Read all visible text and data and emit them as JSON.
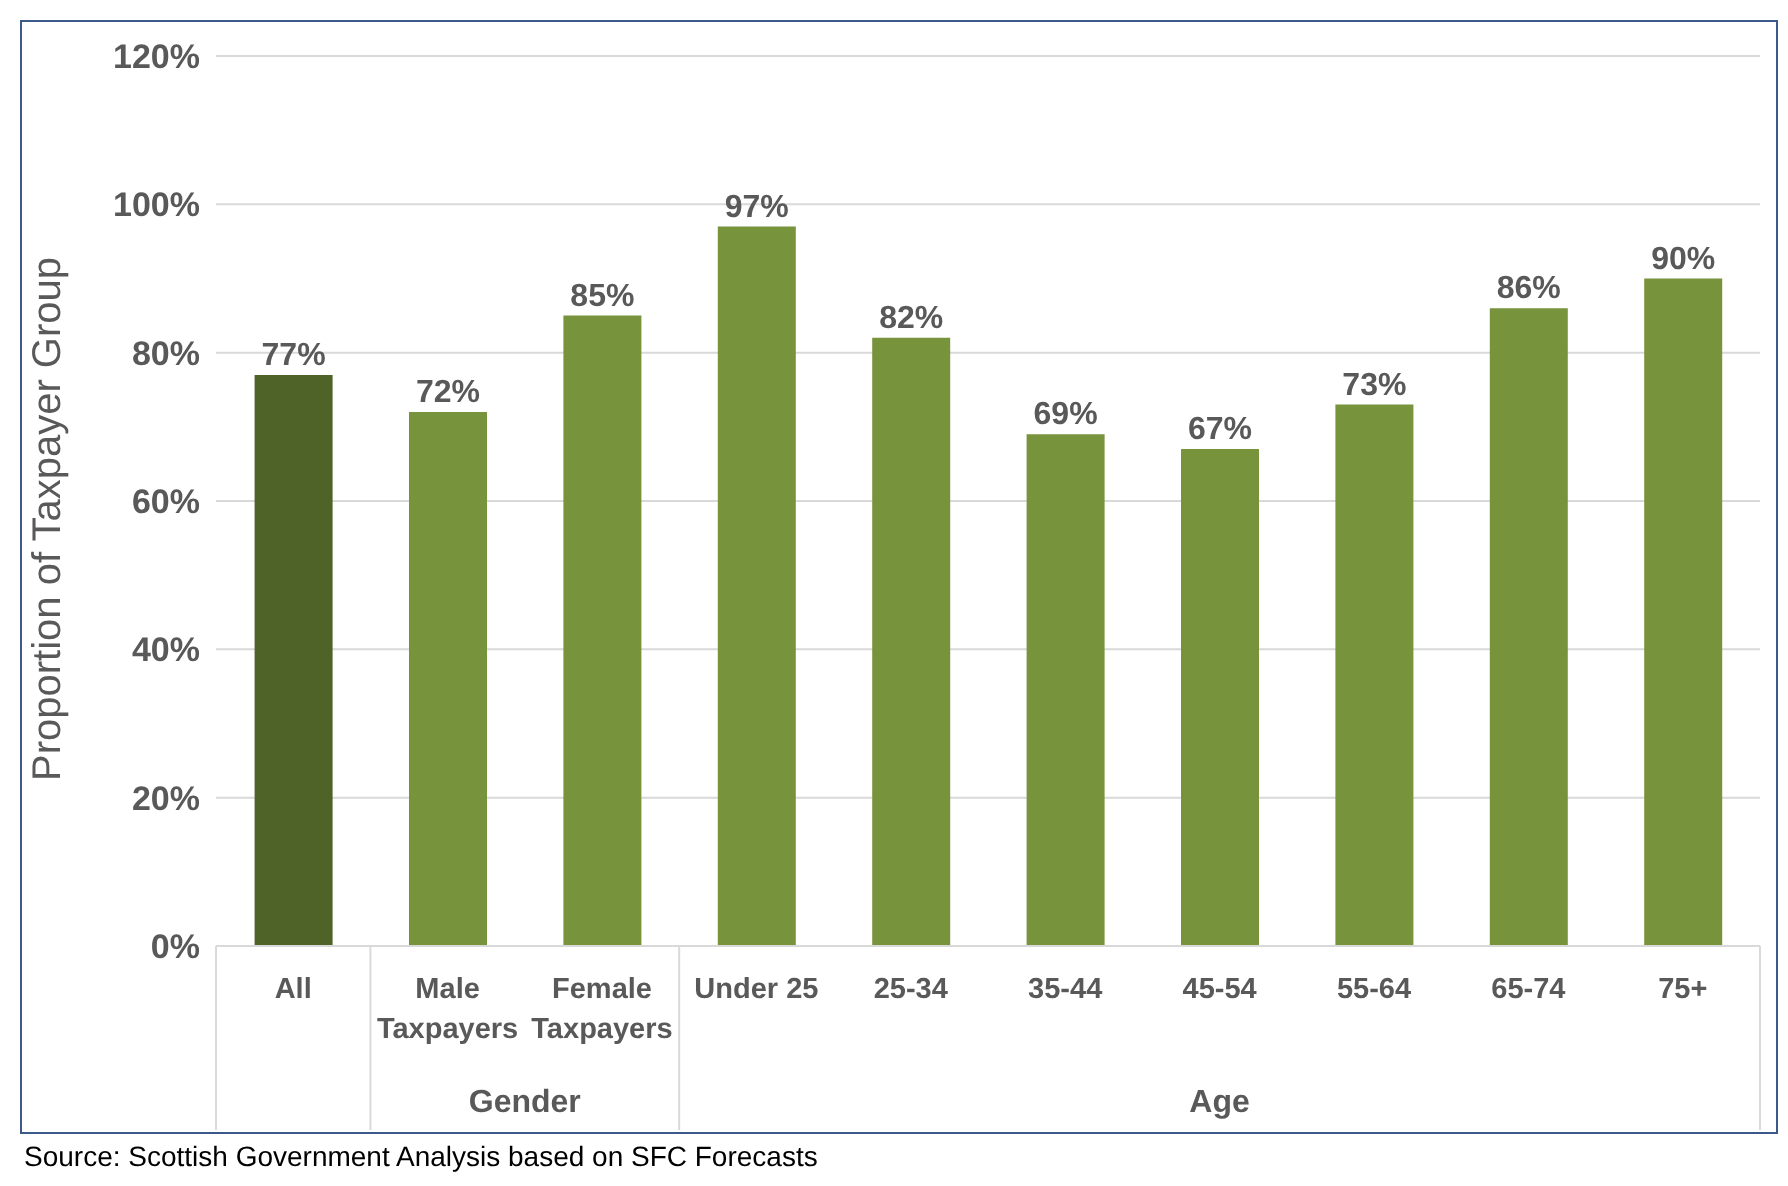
{
  "chart_data": {
    "type": "bar",
    "ylabel": "Proportion of Taxpayer Group",
    "categories": [
      "All",
      "Male Taxpayers",
      "Female Taxpayers",
      "Under 25",
      "25-34",
      "35-44",
      "45-54",
      "55-64",
      "65-74",
      "75+"
    ],
    "values": [
      77,
      72,
      85,
      97,
      82,
      69,
      67,
      73,
      86,
      90
    ],
    "value_labels": [
      "77%",
      "72%",
      "85%",
      "97%",
      "82%",
      "69%",
      "67%",
      "73%",
      "86%",
      "90%"
    ],
    "colors": [
      "#4f6228",
      "#77933c",
      "#77933c",
      "#77933c",
      "#77933c",
      "#77933c",
      "#77933c",
      "#77933c",
      "#77933c",
      "#77933c"
    ],
    "ylim": [
      0,
      120
    ],
    "yticks": [
      {
        "value": 0,
        "label": "0%"
      },
      {
        "value": 20,
        "label": "20%"
      },
      {
        "value": 40,
        "label": "40%"
      },
      {
        "value": 60,
        "label": "60%"
      },
      {
        "value": 80,
        "label": "80%"
      },
      {
        "value": 100,
        "label": "100%"
      },
      {
        "value": 120,
        "label": "120%"
      }
    ],
    "grid": "y",
    "legend": false,
    "annotations": [
      "Gender",
      "Age",
      "Source: Scottish Government Analysis based on SFC Forecasts"
    ]
  }
}
